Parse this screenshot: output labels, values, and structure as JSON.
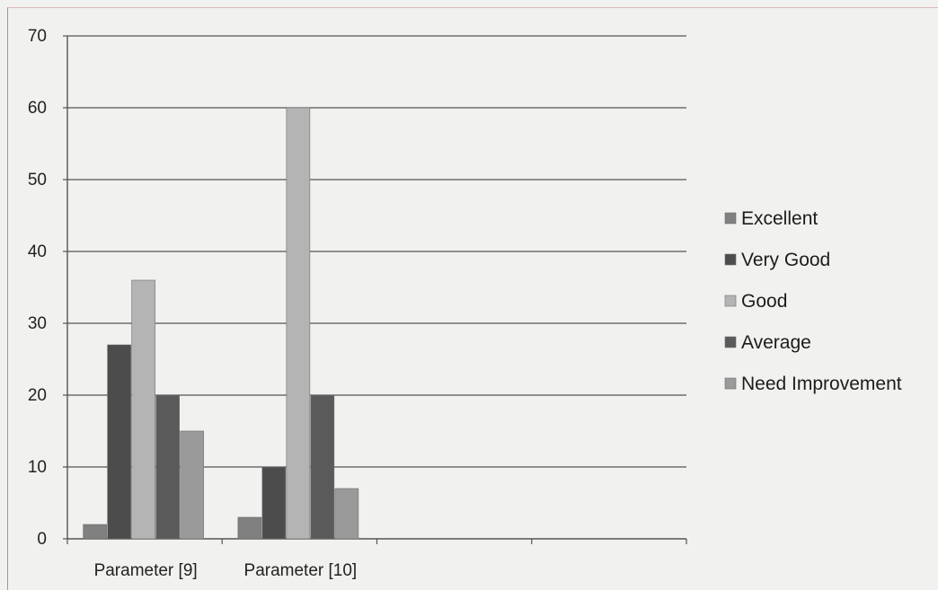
{
  "chart_data": {
    "type": "bar",
    "categories": [
      "Parameter [9]",
      "Parameter [10]",
      "",
      ""
    ],
    "series": [
      {
        "name": "Excellent",
        "values": [
          2,
          3,
          null,
          null
        ],
        "color": "#808080"
      },
      {
        "name": "Very Good",
        "values": [
          27,
          10,
          null,
          null
        ],
        "color": "#4c4c4c"
      },
      {
        "name": "Good",
        "values": [
          36,
          60,
          null,
          null
        ],
        "color": "#b4b4b4"
      },
      {
        "name": "Average",
        "values": [
          20,
          20,
          null,
          null
        ],
        "color": "#5a5a5a"
      },
      {
        "name": "Need Improvement",
        "values": [
          15,
          7,
          null,
          null
        ],
        "color": "#9a9a9a"
      }
    ],
    "yticks": [
      0,
      10,
      20,
      30,
      40,
      50,
      60,
      70
    ],
    "ylim": [
      0,
      70
    ],
    "grid": true,
    "legend": "right",
    "title": "",
    "xlabel": "",
    "ylabel": ""
  }
}
